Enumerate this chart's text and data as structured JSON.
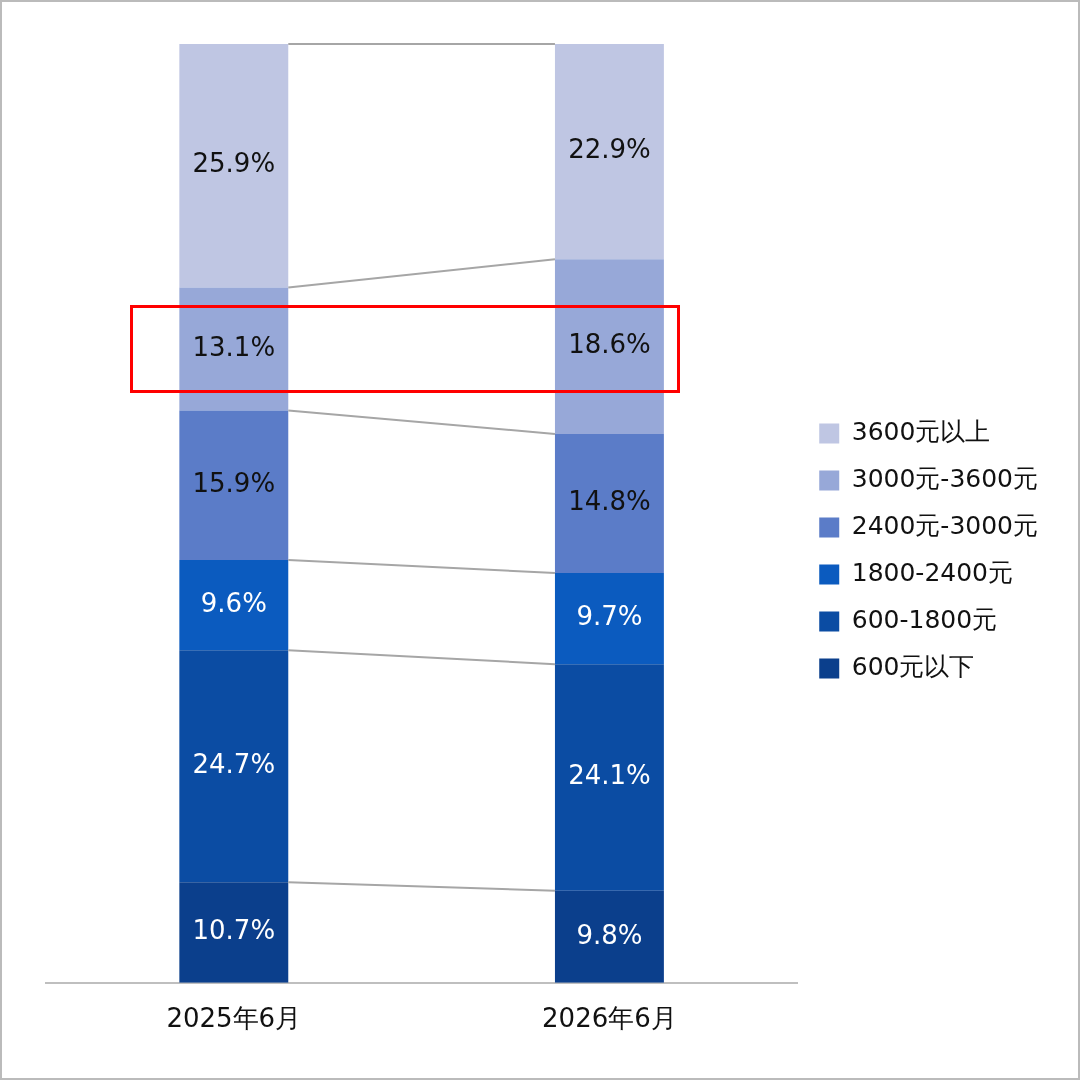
{
  "chart_data": {
    "type": "bar",
    "stacked": true,
    "categories": [
      "2025年6月",
      "2026年6月"
    ],
    "series": [
      {
        "name": "600元以下",
        "color": "#0b3f8c",
        "values": [
          10.7,
          9.8
        ],
        "value_labels": [
          "10.7%",
          "9.8%"
        ]
      },
      {
        "name": "600-1800元",
        "color": "#0b4ca3",
        "values": [
          24.7,
          24.1
        ],
        "value_labels": [
          "24.7%",
          "24.1%"
        ]
      },
      {
        "name": "1800-2400元",
        "color": "#0b5bbf",
        "values": [
          9.6,
          9.7
        ],
        "value_labels": [
          "9.6%",
          "9.7%"
        ]
      },
      {
        "name": "2400元-3000元",
        "color": "#5b7cc8",
        "values": [
          15.9,
          14.8
        ],
        "value_labels": [
          "15.9%",
          "14.8%"
        ]
      },
      {
        "name": "3000元-3600元",
        "color": "#97a8d8",
        "values": [
          13.1,
          18.6
        ],
        "value_labels": [
          "13.1%",
          "18.6%"
        ]
      },
      {
        "name": "3600元以上",
        "color": "#bfc6e3",
        "values": [
          25.9,
          22.9
        ],
        "value_labels": [
          "25.9%",
          "22.9%"
        ]
      }
    ],
    "legend": "right",
    "grid": false
  }
}
